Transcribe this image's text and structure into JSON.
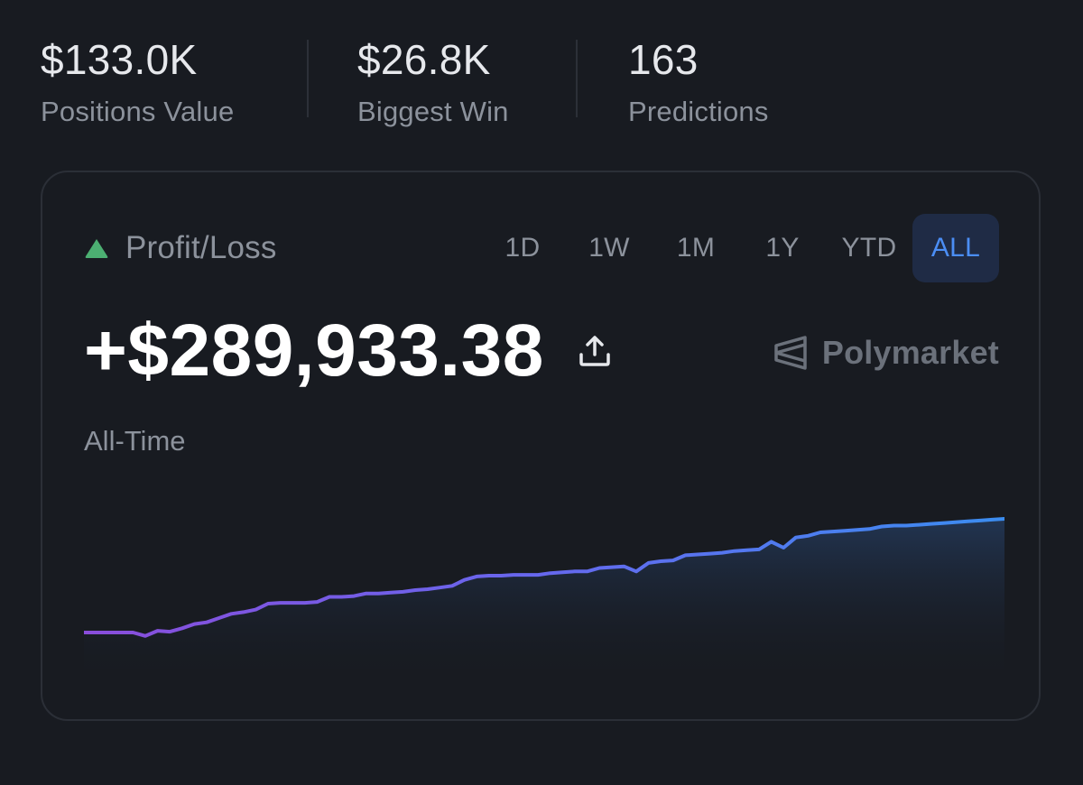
{
  "stats": [
    {
      "value": "$133.0K",
      "label": "Positions Value"
    },
    {
      "value": "$26.8K",
      "label": "Biggest Win"
    },
    {
      "value": "163",
      "label": "Predictions"
    }
  ],
  "pnl": {
    "label": "Profit/Loss",
    "amount": "+$289,933.38",
    "period": "All-Time",
    "up_icon": "triangle-up-icon",
    "share_icon": "share-upload-icon"
  },
  "tabs": [
    {
      "label": "1D",
      "active": false
    },
    {
      "label": "1W",
      "active": false
    },
    {
      "label": "1M",
      "active": false
    },
    {
      "label": "1Y",
      "active": false
    },
    {
      "label": "YTD",
      "active": false
    },
    {
      "label": "ALL",
      "active": true
    }
  ],
  "brand": {
    "name": "Polymarket",
    "logo_icon": "polymarket-logo-icon"
  },
  "colors": {
    "background": "#181b21",
    "positive": "#4caf72",
    "accent": "#4b8ef5",
    "line_start": "#8a4ddb",
    "line_end": "#3b8df0"
  },
  "chart_data": {
    "type": "area",
    "xlabel": "",
    "ylabel": "",
    "grid": false,
    "values": [
      0,
      0,
      0,
      0,
      0,
      -4,
      2,
      1,
      5,
      10,
      12,
      17,
      22,
      24,
      27,
      34,
      35,
      35,
      35,
      36,
      42,
      42,
      43,
      46,
      46,
      47,
      48,
      50,
      51,
      53,
      55,
      62,
      66,
      67,
      67,
      68,
      68,
      68,
      70,
      71,
      72,
      72,
      76,
      77,
      78,
      72,
      82,
      84,
      85,
      91,
      92,
      93,
      94,
      96,
      97,
      98,
      107,
      100,
      112,
      114,
      118,
      119,
      120,
      121,
      122,
      125,
      126,
      126,
      127,
      128,
      129,
      130,
      131,
      132,
      133,
      134
    ]
  }
}
